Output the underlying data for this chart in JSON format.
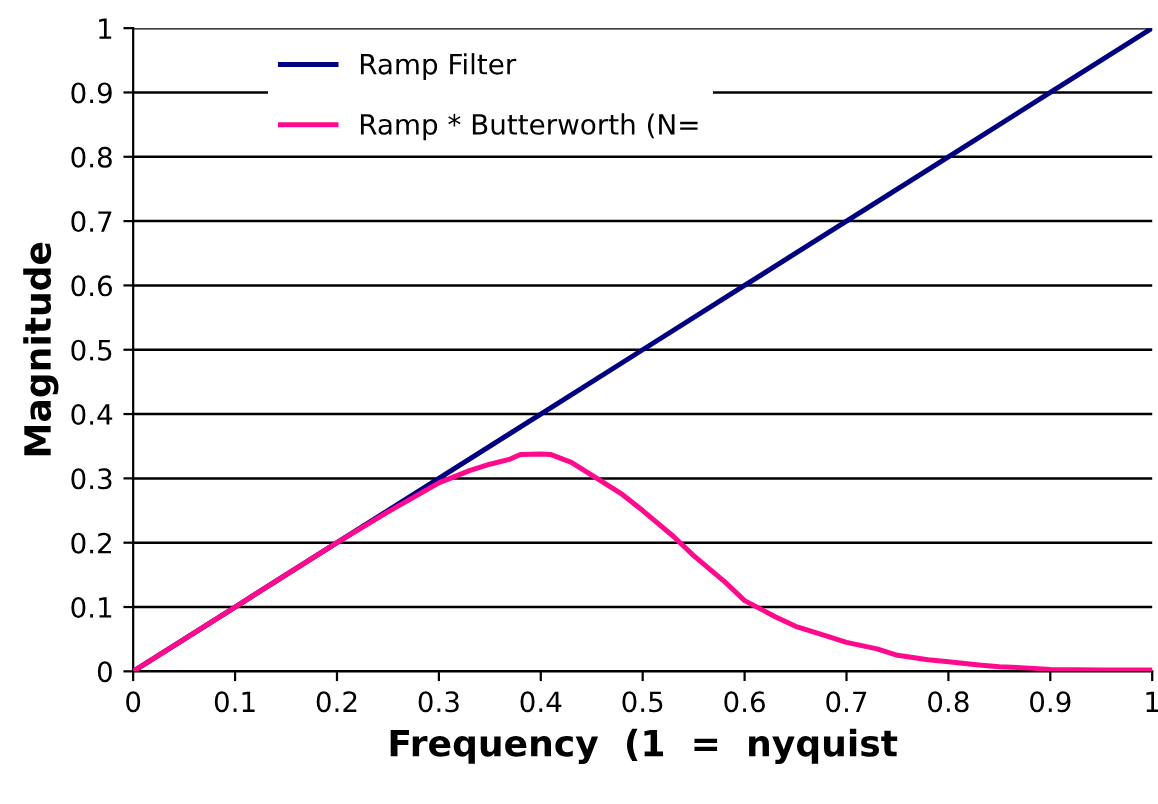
{
  "chart_data": {
    "type": "line",
    "xlabel": "Frequency  (1  =  nyquist",
    "ylabel": "Magnitude",
    "xlim": [
      0,
      1
    ],
    "xticks": [
      0,
      0.1,
      0.2,
      0.3,
      0.4,
      0.5,
      0.6,
      0.7,
      0.8,
      0.9,
      1
    ],
    "ylim": [
      0,
      1
    ],
    "yticks": [
      0,
      0.1,
      0.2,
      0.3,
      0.4,
      0.5,
      0.6,
      0.7,
      0.8,
      0.9,
      1
    ],
    "grid": "y",
    "legend": "top left",
    "marker": "none",
    "line_style": "solid",
    "series": [
      {
        "name": "Ramp Filter",
        "color": "#000080",
        "x": [
          0,
          0.1,
          0.2,
          0.3,
          0.4,
          0.5,
          0.6,
          0.7,
          0.8,
          0.9,
          1
        ],
        "values": [
          0,
          0.1,
          0.2,
          0.3,
          0.4,
          0.5,
          0.6,
          0.7,
          0.8,
          0.9,
          1
        ]
      },
      {
        "name": "Ramp * Butterworth (N=",
        "color": "#ff0a8c",
        "x": [
          0,
          0.1,
          0.2,
          0.25,
          0.3,
          0.33,
          0.35,
          0.37,
          0.38,
          0.4,
          0.41,
          0.43,
          0.45,
          0.48,
          0.5,
          0.53,
          0.55,
          0.58,
          0.6,
          0.63,
          0.65,
          0.68,
          0.7,
          0.73,
          0.75,
          0.78,
          0.8,
          0.83,
          0.85,
          0.88,
          0.9,
          0.95,
          1
        ],
        "values": [
          0,
          0.1,
          0.2,
          0.248,
          0.293,
          0.312,
          0.322,
          0.33,
          0.337,
          0.338,
          0.337,
          0.325,
          0.305,
          0.275,
          0.25,
          0.21,
          0.18,
          0.14,
          0.11,
          0.085,
          0.07,
          0.055,
          0.045,
          0.035,
          0.025,
          0.018,
          0.015,
          0.01,
          0.007,
          0.005,
          0.003,
          0.002,
          0.002
        ]
      }
    ]
  }
}
